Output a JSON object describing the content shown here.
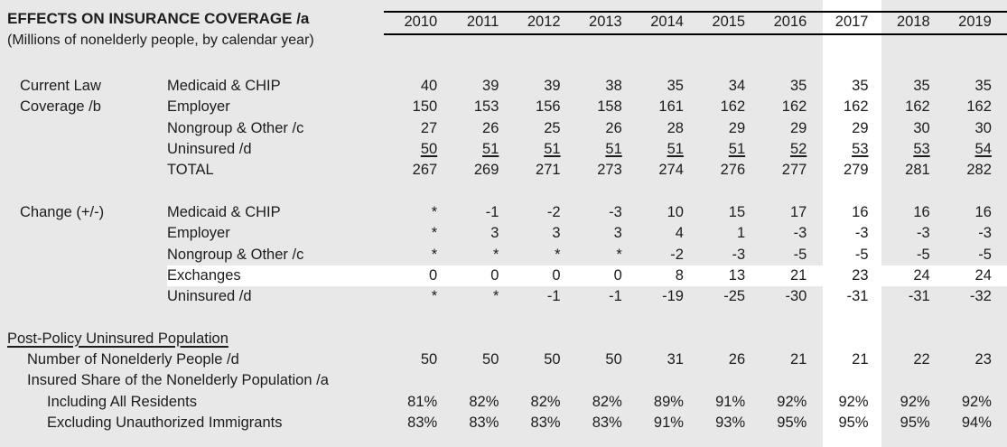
{
  "chart_data": {
    "type": "table",
    "title": "EFFECTS ON INSURANCE COVERAGE /a",
    "subtitle": "(Millions of nonelderly people, by calendar year)",
    "columns": [
      "2010",
      "2011",
      "2012",
      "2013",
      "2014",
      "2015",
      "2016",
      "2017",
      "2018",
      "2019"
    ],
    "highlight": {
      "column": "2017",
      "row": "Exchanges"
    },
    "sections": [
      {
        "label_lines": [
          "Current Law",
          "Coverage /b"
        ],
        "rows": [
          {
            "label": "Medicaid & CHIP",
            "values": [
              "40",
              "39",
              "39",
              "38",
              "35",
              "34",
              "35",
              "35",
              "35",
              "35"
            ]
          },
          {
            "label": "Employer",
            "values": [
              "150",
              "153",
              "156",
              "158",
              "161",
              "162",
              "162",
              "162",
              "162",
              "162"
            ]
          },
          {
            "label": "Nongroup & Other /c",
            "values": [
              "27",
              "26",
              "25",
              "26",
              "28",
              "29",
              "29",
              "29",
              "30",
              "30"
            ]
          },
          {
            "label": "Uninsured /d",
            "underlined_values": true,
            "values": [
              "50",
              "51",
              "51",
              "51",
              "51",
              "51",
              "52",
              "53",
              "53",
              "54"
            ]
          },
          {
            "label": "TOTAL",
            "values": [
              "267",
              "269",
              "271",
              "273",
              "274",
              "276",
              "277",
              "279",
              "281",
              "282"
            ]
          }
        ]
      },
      {
        "label_lines": [
          "Change (+/-)"
        ],
        "rows": [
          {
            "label": "Medicaid & CHIP",
            "values": [
              "*",
              "-1",
              "-2",
              "-3",
              "10",
              "15",
              "17",
              "16",
              "16",
              "16"
            ]
          },
          {
            "label": "Employer",
            "values": [
              "*",
              "3",
              "3",
              "3",
              "4",
              "1",
              "-3",
              "-3",
              "-3",
              "-3"
            ]
          },
          {
            "label": "Nongroup & Other /c",
            "values": [
              "*",
              "*",
              "*",
              "*",
              "-2",
              "-3",
              "-5",
              "-5",
              "-5",
              "-5"
            ]
          },
          {
            "label": "Exchanges",
            "highlighted": true,
            "values": [
              "0",
              "0",
              "0",
              "0",
              "8",
              "13",
              "21",
              "23",
              "24",
              "24"
            ]
          },
          {
            "label": "Uninsured /d",
            "values": [
              "*",
              "*",
              "-1",
              "-1",
              "-19",
              "-25",
              "-30",
              "-31",
              "-31",
              "-32"
            ]
          }
        ]
      }
    ],
    "post_policy": {
      "heading": "Post-Policy Uninsured Population",
      "rows": [
        {
          "label": "Number of Nonelderly People /d",
          "values": [
            "50",
            "50",
            "50",
            "50",
            "31",
            "26",
            "21",
            "21",
            "22",
            "23"
          ]
        },
        {
          "label": "Insured Share of the Nonelderly Population /a",
          "values": []
        },
        {
          "label": "Including All Residents",
          "values": [
            "81%",
            "82%",
            "82%",
            "82%",
            "89%",
            "91%",
            "92%",
            "92%",
            "92%",
            "92%"
          ]
        },
        {
          "label": "Excluding Unauthorized Immigrants",
          "values": [
            "83%",
            "83%",
            "83%",
            "83%",
            "91%",
            "93%",
            "95%",
            "95%",
            "95%",
            "94%"
          ]
        }
      ]
    }
  },
  "colors": {
    "table_fill": "#e8e8e8",
    "highlight_fill": "#ffffff",
    "text": "#1c1c1c",
    "rule": "#000000"
  }
}
